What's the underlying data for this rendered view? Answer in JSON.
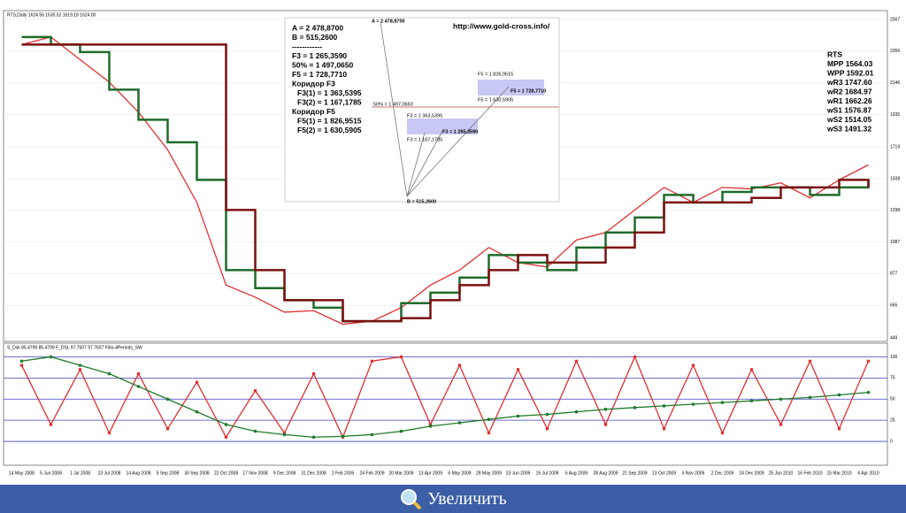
{
  "chart_data": [
    {
      "type": "line",
      "title": "RTS,Daily  1624.56 1630.52 1619.18 1624.00",
      "categories": [
        "14 May 2008",
        "5 Jun 2008",
        "1 Jul 2008",
        "23 Jul 2008",
        "14 Aug 2008",
        "5 Sep 2008",
        "30 Sep 2008",
        "22 Oct 2008",
        "17 Nov 2008",
        "9 Dec 2008",
        "31 Dec 2008",
        "2 Feb 2009",
        "24 Feb 2009",
        "20 Mar 2009",
        "13 Apr 2009",
        "6 May 2009",
        "29 May 2009",
        "23 Jun 2009",
        "15 Jul 2009",
        "6 Aug 2009",
        "28 Aug 2009",
        "21 Sep 2009",
        "13 Oct 2009",
        "5 Nov 2009",
        "2 Dec 2009",
        "24 Dec 2009",
        "25 Jan 2010",
        "16 Feb 2010",
        "15 Mar 2010",
        "6 Apr 2010"
      ],
      "series": [
        {
          "name": "Close",
          "color": "#e03030",
          "style": "line",
          "values": [
            2400,
            2450,
            2300,
            2150,
            1950,
            1700,
            1350,
            800,
            720,
            620,
            630,
            540,
            560,
            650,
            800,
            900,
            1050,
            950,
            920,
            1100,
            1150,
            1300,
            1450,
            1350,
            1450,
            1440,
            1480,
            1380,
            1500,
            1600
          ]
        },
        {
          "name": "Green level",
          "color": "#1e6b2a",
          "style": "step",
          "values": [
            2450,
            2400,
            2350,
            2100,
            1900,
            1750,
            1500,
            900,
            780,
            700,
            650,
            560,
            560,
            680,
            750,
            850,
            1000,
            950,
            900,
            1050,
            1150,
            1250,
            1400,
            1350,
            1420,
            1450,
            1450,
            1400,
            1450,
            1500
          ]
        },
        {
          "name": "Red level",
          "color": "#7a1010",
          "style": "step",
          "values": [
            2400,
            2400,
            2400,
            2400,
            2400,
            2400,
            2400,
            1300,
            900,
            700,
            700,
            560,
            560,
            580,
            700,
            800,
            900,
            1000,
            950,
            950,
            1050,
            1150,
            1350,
            1350,
            1350,
            1380,
            1450,
            1450,
            1500,
            1450
          ]
        }
      ],
      "ylim": [
        449,
        2567
      ],
      "yticks": [
        2567,
        2356,
        2146,
        1935,
        1719,
        1508,
        1298,
        1087,
        877,
        665,
        449
      ]
    },
    {
      "type": "line",
      "title": "S_Dsk 85.4799 85.4799  F_DSL 97.7607 97.7607  Fibo-4Periods_SW",
      "series": [
        {
          "name": "Fast",
          "color": "#e03030",
          "style": "line",
          "values": [
            90,
            20,
            85,
            10,
            80,
            15,
            70,
            5,
            60,
            10,
            80,
            5,
            95,
            100,
            20,
            90,
            10,
            85,
            15,
            95,
            20,
            100,
            15,
            90,
            10,
            85,
            20,
            95,
            15,
            95
          ]
        },
        {
          "name": "Slow",
          "color": "#1e7a2a",
          "style": "line",
          "values": [
            95,
            100,
            90,
            80,
            65,
            50,
            35,
            20,
            12,
            8,
            5,
            6,
            8,
            12,
            18,
            22,
            26,
            30,
            32,
            35,
            38,
            40,
            42,
            44,
            46,
            48,
            50,
            52,
            55,
            58
          ]
        }
      ],
      "ylim": [
        -24,
        112
      ],
      "yticks": [
        0,
        25,
        50,
        75,
        100
      ]
    }
  ],
  "annotation": {
    "lines": [
      "A = 2 478,8700",
      "B = 515,2600",
      "------------",
      "F3 = 1 265,3590",
      "50% = 1 497,0650",
      "F5 = 1 728,7710",
      "Коридор F3",
      "F3(1) = 1 363,5395",
      "F3(2) = 1 167,1785",
      "Коридор F5",
      "F5(1) = 1 826,9515",
      "F5(2) = 1 630,5905"
    ],
    "url": "http://www.gold-cross.info/",
    "diagram_labels": [
      "A = 2 478,8700",
      "B = 515,2600",
      "50% = 1 497,0650",
      "F3 = 1 265,3590",
      "F5 = 1 728,7710",
      "F3 = 1 363,5395",
      "F3 = 1 167,1785",
      "F5 = 1 826,9515",
      "F5 = 1 630,5905"
    ]
  },
  "pivots": [
    "RTS",
    "MPP 1564.03",
    "WPP 1592.01",
    "wR3 1747.60",
    "wR2 1684.97",
    "wR1 1662.26",
    "wS1 1576.87",
    "wS2 1514.05",
    "wS3 1491.32"
  ],
  "button": "Увеличить"
}
